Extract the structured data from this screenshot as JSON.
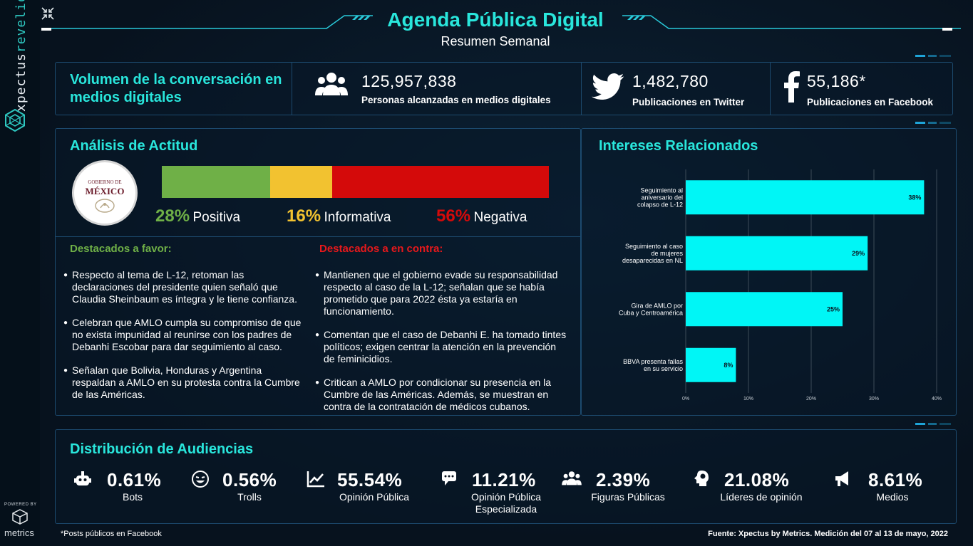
{
  "brand": {
    "name_a": "xpectus",
    "name_b": "revelio",
    "powered_by": "POWERED BY",
    "partner": "metrics"
  },
  "header": {
    "title": "Agenda Pública Digital",
    "subtitle": "Resumen Semanal"
  },
  "volume": {
    "title": "Volumen de la conversación en medios digitales",
    "stats": [
      {
        "value": "125,957,838",
        "label": "Personas alcanzadas en medios digitales",
        "icon": "people-group-icon"
      },
      {
        "value": "1,482,780",
        "label": "Publicaciones en Twitter",
        "icon": "twitter-icon"
      },
      {
        "value": "55,186*",
        "label": "Publicaciones en Facebook",
        "icon": "facebook-icon"
      }
    ]
  },
  "attitude": {
    "title": "Análisis de Actitud",
    "seal_line1": "GOBIERNO DE",
    "seal_line2": "MÉXICO",
    "segments": [
      {
        "pct": 28,
        "pct_text": "28%",
        "label": "Positiva",
        "color": "#6fb047"
      },
      {
        "pct": 16,
        "pct_text": "16%",
        "label": "Informativa",
        "color": "#f2c230"
      },
      {
        "pct": 56,
        "pct_text": "56%",
        "label": "Negativa",
        "color": "#d40a0a"
      }
    ],
    "favor": {
      "title": "Destacados a favor:",
      "items": [
        "Respecto al tema de L-12, retoman las declaraciones del presidente quien señaló que Claudia Sheinbaum es íntegra y le tiene confianza.",
        "Celebran que AMLO cumpla su compromiso de que no exista impunidad al reunirse con los padres de Debanhi Escobar para dar seguimiento al caso.",
        "Señalan que Bolivia, Honduras y Argentina respaldan a AMLO en su protesta contra la Cumbre de las Américas."
      ]
    },
    "contra": {
      "title": "Destacados a en contra:",
      "items": [
        "Mantienen que el gobierno evade su responsabilidad respecto al caso de la L-12; señalan que se había prometido que para 2022 ésta ya estaría en funcionamiento.",
        "Comentan que el caso de Debanhi E. ha tomado tintes políticos; exigen centrar la atención en la prevención de feminicidios.",
        "Critican a AMLO por condicionar su presencia en la Cumbre de las Américas. Además, se muestran en contra de la contratación de médicos cubanos."
      ]
    }
  },
  "interests": {
    "title": "Intereses Relacionados"
  },
  "chart_data": {
    "type": "bar",
    "orientation": "horizontal",
    "categories": [
      [
        "Seguimiento al",
        "aniversario del",
        "colapso de L-12"
      ],
      [
        "Seguimiento al caso",
        "de mujeres",
        "desaparecidas en NL"
      ],
      [
        "Gira de AMLO por",
        "Cuba y Centroamérica"
      ],
      [
        "BBVA presenta fallas",
        "en su servicio"
      ]
    ],
    "values": [
      38,
      29,
      25,
      8
    ],
    "value_labels": [
      "38%",
      "29%",
      "25%",
      "8%"
    ],
    "xlim": [
      0,
      40
    ],
    "xticks": [
      "0%",
      "10%",
      "20%",
      "30%",
      "40%"
    ],
    "bar_color": "#00f6f6",
    "grid": true
  },
  "audiences": {
    "title": "Distribución de Audiencias",
    "items": [
      {
        "pct": "0.61%",
        "label": "Bots",
        "icon": "robot-icon"
      },
      {
        "pct": "0.56%",
        "label": "Trolls",
        "icon": "troll-face-icon"
      },
      {
        "pct": "55.54%",
        "label": "Opinión Pública",
        "icon": "line-chart-icon"
      },
      {
        "pct": "11.21%",
        "label": "Opinión Pública Especializada",
        "icon": "chat-bubbles-icon"
      },
      {
        "pct": "2.39%",
        "label": "Figuras Públicas",
        "icon": "people-group-icon"
      },
      {
        "pct": "21.08%",
        "label": "Líderes de opinión",
        "icon": "lightbulb-head-icon"
      },
      {
        "pct": "8.61%",
        "label": "Medios",
        "icon": "megaphone-icon"
      }
    ]
  },
  "footer": {
    "note": "*Posts públicos en Facebook",
    "source": "Fuente: Xpectus by Metrics. Medición del 07 al 13 de mayo, 2022"
  }
}
